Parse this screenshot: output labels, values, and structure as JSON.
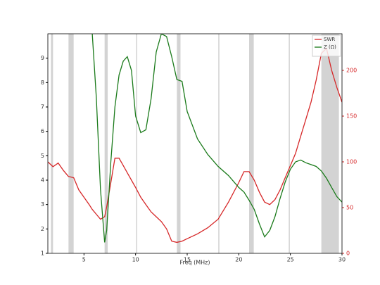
{
  "chart_data": {
    "type": "line",
    "xlabel": "Freq (MHz)",
    "x": [
      1.5,
      2,
      2.5,
      3,
      3.5,
      4,
      4.5,
      5,
      5.5,
      5.8,
      6.2,
      6.6,
      7.0,
      7.2,
      7.6,
      8.0,
      8.4,
      8.8,
      9.2,
      9.6,
      10,
      10.5,
      11,
      11.5,
      12,
      12.5,
      13,
      13.5,
      14,
      14.5,
      15,
      16,
      17,
      18,
      19,
      20,
      20.5,
      21,
      21.5,
      22,
      22.5,
      23,
      23.5,
      24,
      24.5,
      25,
      25.5,
      26,
      26.5,
      27,
      27.5,
      28,
      28.5,
      29,
      29.5,
      30
    ],
    "series": [
      {
        "name": "SWR",
        "color": "#d62728",
        "axis": "y",
        "values": [
          4.75,
          4.55,
          4.7,
          4.4,
          4.15,
          4.1,
          3.6,
          3.3,
          3.0,
          2.8,
          2.6,
          2.4,
          2.5,
          2.9,
          3.9,
          4.9,
          4.9,
          4.6,
          4.3,
          4.0,
          3.7,
          3.3,
          3.0,
          2.7,
          2.5,
          2.3,
          2.0,
          1.5,
          1.45,
          1.5,
          1.6,
          1.8,
          2.05,
          2.4,
          3.1,
          3.9,
          4.35,
          4.35,
          4.0,
          3.5,
          3.1,
          3.0,
          3.2,
          3.6,
          4.1,
          4.6,
          5.1,
          5.8,
          6.5,
          7.2,
          8.1,
          9.2,
          9.4,
          8.5,
          7.8,
          7.2
        ]
      },
      {
        "name": "Z (Ω)",
        "color": "#1a7a1a",
        "axis": "y2",
        "values": [
          null,
          null,
          null,
          null,
          null,
          null,
          null,
          null,
          null,
          240,
          170,
          70,
          12,
          25,
          100,
          160,
          195,
          210,
          215,
          200,
          150,
          132,
          135,
          169,
          220,
          240,
          237,
          215,
          190,
          188,
          155,
          125,
          108,
          95,
          85,
          72,
          67,
          58,
          48,
          32,
          18,
          25,
          40,
          60,
          78,
          92,
          100,
          102,
          99,
          97,
          95,
          90,
          82,
          72,
          62,
          56
        ]
      }
    ],
    "xlim": [
      1.5,
      30
    ],
    "xticks": [
      5,
      10,
      15,
      20,
      25,
      30
    ],
    "ylim": [
      1,
      10
    ],
    "yticks": [
      1,
      2,
      3,
      4,
      5,
      6,
      7,
      8,
      9
    ],
    "y2lim": [
      0,
      240
    ],
    "y2ticks": [
      0,
      50,
      100,
      150,
      200
    ],
    "bands": [
      [
        1.8,
        2.0
      ],
      [
        3.5,
        4.0
      ],
      [
        7.0,
        7.3
      ],
      [
        14.0,
        14.35
      ],
      [
        21.0,
        21.45
      ],
      [
        28.0,
        29.7
      ]
    ],
    "band_color": "#d3d3d3",
    "markers": [
      10.1,
      18.068,
      24.89
    ],
    "legend": "upper right"
  }
}
